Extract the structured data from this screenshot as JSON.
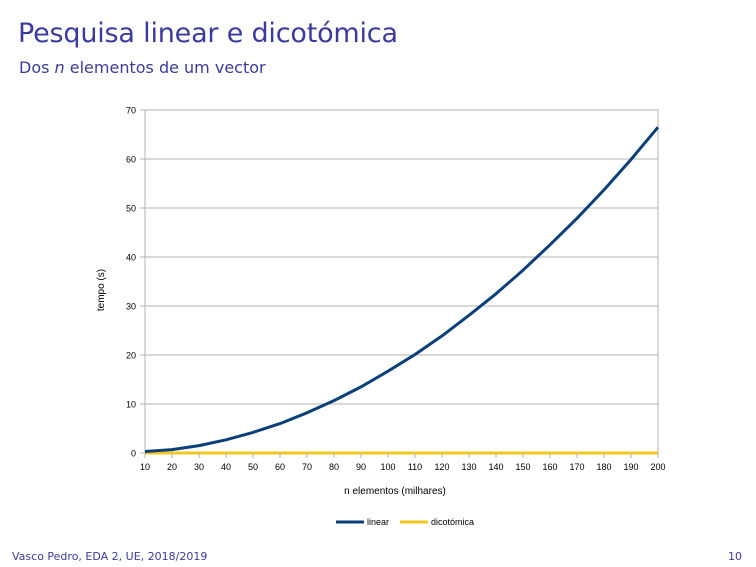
{
  "slide": {
    "title": "Pesquisa linear e dicotómica",
    "subtitle_prefix": "Dos ",
    "subtitle_var": "n",
    "subtitle_suffix": " elementos de um vector",
    "footer_left": "Vasco Pedro, EDA 2, UE, 2018/2019",
    "page_number": "10"
  },
  "chart_data": {
    "type": "line",
    "xlabel": "n elementos (milhares)",
    "ylabel": "tempo (s)",
    "x": [
      10,
      20,
      30,
      40,
      50,
      60,
      70,
      80,
      90,
      100,
      110,
      120,
      130,
      140,
      150,
      160,
      170,
      180,
      190,
      200
    ],
    "xlim": [
      10,
      200
    ],
    "ylim": [
      0,
      70
    ],
    "yticks": [
      0,
      10,
      20,
      30,
      40,
      50,
      60,
      70
    ],
    "grid": "horizontal",
    "legend_position": "bottom",
    "series": [
      {
        "name": "linear",
        "color": "#0b3f7a",
        "values": [
          0.3,
          0.7,
          1.5,
          2.7,
          4.2,
          6.0,
          8.2,
          10.7,
          13.5,
          16.7,
          20.1,
          23.9,
          28.1,
          32.5,
          37.3,
          42.5,
          47.9,
          53.7,
          59.9,
          66.5
        ]
      },
      {
        "name": "dicotómica",
        "color": "#f2c81e",
        "values": [
          0,
          0,
          0,
          0,
          0,
          0,
          0,
          0,
          0,
          0,
          0,
          0,
          0,
          0,
          0,
          0,
          0,
          0,
          0,
          0
        ]
      }
    ]
  }
}
